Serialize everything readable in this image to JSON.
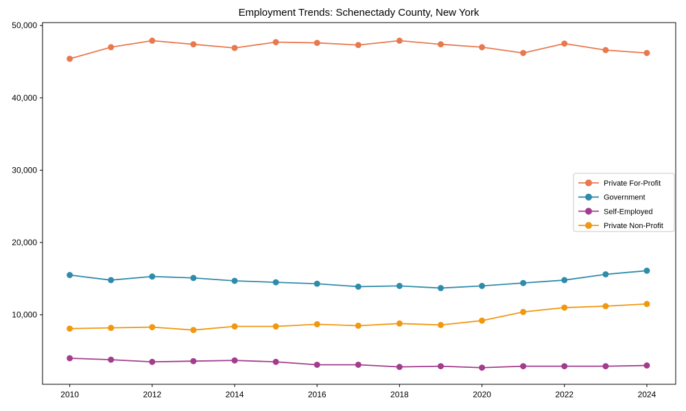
{
  "chart_data": {
    "type": "line",
    "title": "Employment Trends: Schenectady County, New York",
    "xlabel": "",
    "ylabel": "",
    "x": [
      2010,
      2011,
      2012,
      2013,
      2014,
      2015,
      2016,
      2017,
      2018,
      2019,
      2020,
      2021,
      2022,
      2023,
      2024
    ],
    "series": [
      {
        "name": "Private For-Profit",
        "color": "#e8794e",
        "values": [
          45400,
          47000,
          47900,
          47400,
          46900,
          47700,
          47600,
          47300,
          47900,
          47400,
          47000,
          46200,
          47500,
          46600,
          46200
        ]
      },
      {
        "name": "Government",
        "color": "#2e8bab",
        "values": [
          15500,
          14800,
          15300,
          15100,
          14700,
          14500,
          14300,
          13900,
          14000,
          13700,
          14000,
          14400,
          14800,
          15600,
          16100
        ]
      },
      {
        "name": "Self-Employed",
        "color": "#a23c8c",
        "values": [
          4000,
          3800,
          3500,
          3600,
          3700,
          3500,
          3100,
          3100,
          2800,
          2900,
          2700,
          2900,
          2900,
          2900,
          3000
        ]
      },
      {
        "name": "Private Non-Profit",
        "color": "#f0980e",
        "values": [
          8100,
          8200,
          8300,
          7900,
          8400,
          8400,
          8700,
          8500,
          8800,
          8600,
          9200,
          10400,
          11000,
          11200,
          11500
        ]
      }
    ],
    "xlim": [
      2009.34,
      2024.7
    ],
    "ylim": [
      400,
      50400
    ],
    "xticks": [
      2010,
      2012,
      2014,
      2016,
      2018,
      2020,
      2022,
      2024
    ],
    "yticks": [
      {
        "value": 10000,
        "label": "10,000"
      },
      {
        "value": 20000,
        "label": "20,000"
      },
      {
        "value": 30000,
        "label": "30,000"
      },
      {
        "value": 40000,
        "label": "40,000"
      },
      {
        "value": 50000,
        "label": "50,000"
      }
    ],
    "grid": false,
    "legend_position": "center-right",
    "axis_color": "#000000",
    "legend_border_color": "#c8c8c8",
    "legend_background": "#ffffff"
  }
}
